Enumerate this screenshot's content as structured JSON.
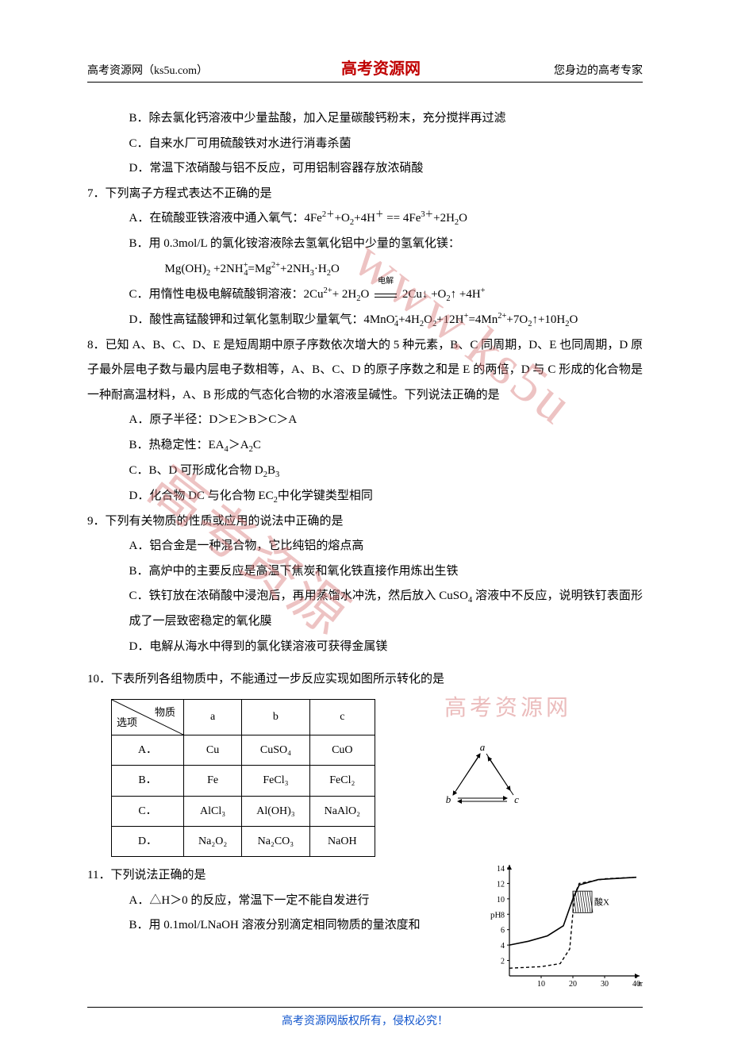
{
  "header": {
    "left": "高考资源网（ks5u.com）",
    "center": "高考资源网",
    "right": "您身边的高考专家"
  },
  "watermark": {
    "wm1": "www.ks5u",
    "wm2": "高考资源",
    "wm3": "高考资源网"
  },
  "options6": {
    "B": "B．除去氯化钙溶液中少量盐酸，加入足量碳酸钙粉末，充分搅拌再过滤",
    "C": "C．自来水厂可用硫酸铁对水进行消毒杀菌",
    "D": "D．常温下浓硝酸与铝不反应，可用铝制容器存放浓硝酸"
  },
  "q7": {
    "stem": "7．下列离子方程式表达不正确的是",
    "A_pre": "A．在硫酸亚铁溶液中通入氧气：4Fe",
    "A_mid1": "+O",
    "A_mid2": "+4H",
    "A_eq": " == 4Fe",
    "A_tail": "+2H",
    "B1": "B．用 0.3mol/L 的氯化铵溶液除去氢氧化铝中少量的氢氧化镁：",
    "B2_pre": "Mg(OH)",
    "B2_mid": " +2NH",
    "B2_eq": "=Mg",
    "B2_mid2": "+2NH",
    "B2_tail": "·H",
    "C_pre": "C．用惰性电极电解硫酸铜溶液：2Cu",
    "C_mid": "+ 2H",
    "C_arrow": "电解",
    "C_mid2": " 2Cu↓ +O",
    "C_tail": "↑ +4H",
    "D_pre": "D．酸性高锰酸钾和过氧化氢制取少量氧气：4MnO",
    "D_mid": "+4H",
    "D_mid2": "+12H",
    "D_eq": "=4Mn",
    "D_mid3": "+7O",
    "D_tail": "↑+10H"
  },
  "q8": {
    "stem": "8．已知 A、B、C、D、E 是短周期中原子序数依次增大的 5 种元素，B、C 同周期，D、E 也同周期，D 原子最外层电子数与最内层电子数相等，A、B、C、D 的原子序数之和是 E 的两倍，D 与 C 形成的化合物是一种耐高温材料，A、B 形成的气态化合物的水溶液呈碱性。下列说法正确的是",
    "A": "A．原子半径：D＞E＞B＞C＞A",
    "B_pre": "B．热稳定性：EA",
    "B_mid": "＞A",
    "C_pre": "C．B、D 可形成化合物 D",
    "C_tail": "B",
    "D_pre": "D．化合物 DC 与化合物 EC",
    "D_tail": "中化学键类型相同"
  },
  "q9": {
    "stem": "9．下列有关物质的性质或应用的说法中正确的是",
    "A": "A．铝合金是一种混合物，它比纯铝的熔点高",
    "B": "B．高炉中的主要反应是高温下焦炭和氧化铁直接作用炼出生铁",
    "C_pre": "C．铁钉放在浓硝酸中浸泡后，再用蒸馏水冲洗，然后放入 CuSO",
    "C_tail": "溶液中不反应，说明铁钉表面形成了一层致密稳定的氧化膜",
    "D": "D．电解从海水中得到的氯化镁溶液可获得金属镁"
  },
  "q10": {
    "stem": "10．下表所列各组物质中，不能通过一步反应实现如图所示转化的是",
    "table": {
      "head_diag_top": "物质",
      "head_diag_bot": "选项",
      "cols": [
        "a",
        "b",
        "c"
      ],
      "rows": [
        {
          "opt": "A．",
          "a": "Cu",
          "b": "CuSO₄",
          "c": "CuO"
        },
        {
          "opt": "B．",
          "a": "Fe",
          "b": "FeCl₃",
          "c": "FeCl₂"
        },
        {
          "opt": "C．",
          "a": "AlCl₃",
          "b": "Al(OH)₃",
          "c": "NaAlO₂"
        },
        {
          "opt": "D．",
          "a": "Na₂O₂",
          "b": "Na₂CO₃",
          "c": "NaOH"
        }
      ]
    },
    "triangle": {
      "a": "a",
      "b": "b",
      "c": "c"
    }
  },
  "q11": {
    "stem": "11．下列说法正确的是",
    "A": "A．△H＞0 的反应，常温下一定不能自发进行",
    "B": "B．用 0.1mol/LNaOH 溶液分别滴定相同物质的量浓度和",
    "chart": {
      "ylabel": "pH",
      "yticks": [
        2,
        4,
        6,
        8,
        10,
        12,
        14
      ],
      "xticks": [
        10,
        20,
        30,
        40
      ],
      "xunit": "ml",
      "region_label": "酸X",
      "colors": {
        "axis": "#000000",
        "solid": "#000000",
        "dash": "#000000",
        "hatch": "#000000",
        "bg": "#ffffff"
      },
      "solid_line": [
        [
          0,
          4.0
        ],
        [
          6,
          4.5
        ],
        [
          12,
          5.2
        ],
        [
          17,
          6.5
        ],
        [
          20,
          10
        ],
        [
          22,
          11.8
        ],
        [
          28,
          12.5
        ],
        [
          40,
          12.8
        ]
      ],
      "dash_line": [
        [
          0,
          1.0
        ],
        [
          10,
          1.2
        ],
        [
          16,
          1.6
        ],
        [
          19,
          3.5
        ],
        [
          20.5,
          10.5
        ],
        [
          22,
          12
        ],
        [
          30,
          12.6
        ],
        [
          40,
          12.8
        ]
      ],
      "shade_y": [
        8.2,
        11.0
      ],
      "shade_x": [
        20,
        26
      ]
    }
  },
  "footer": "高考资源网版权所有，侵权必究！"
}
